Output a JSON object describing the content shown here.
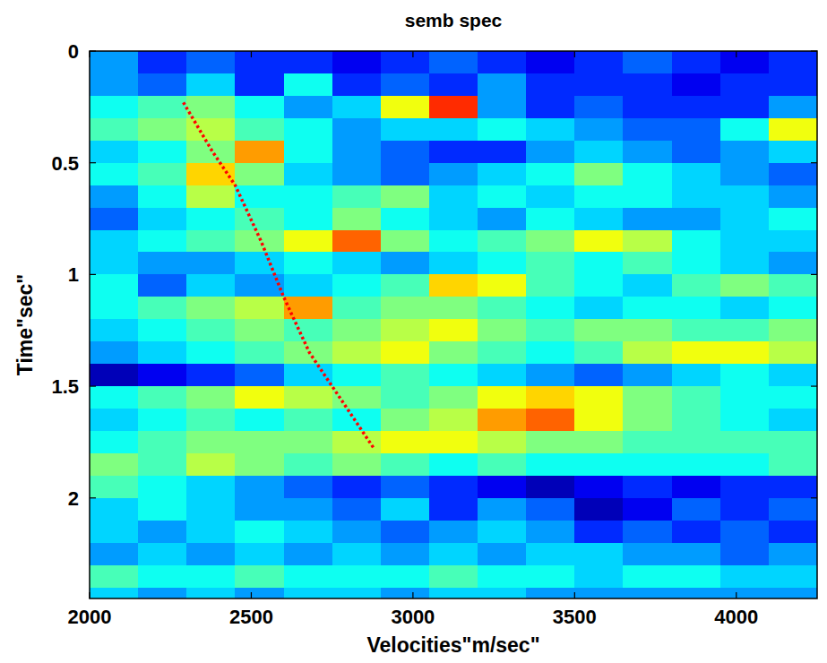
{
  "chart_data": {
    "type": "heatmap",
    "title": "semb spec",
    "x_label": "Velocities\"m/sec\"",
    "y_label": "Time\"sec\"",
    "xlim": [
      2000,
      4250
    ],
    "ylim": [
      0,
      2.45
    ],
    "xticks": [
      2000,
      2500,
      3000,
      3500,
      4000
    ],
    "yticks": [
      0,
      0.5,
      1,
      1.5,
      2
    ],
    "x_edges": [
      2000,
      2150,
      2300,
      2450,
      2600,
      2750,
      2900,
      3050,
      3200,
      3350,
      3500,
      3650,
      3800,
      3950,
      4100,
      4250
    ],
    "y_edges": [
      0,
      0.1,
      0.2,
      0.3,
      0.4,
      0.5,
      0.6,
      0.7,
      0.8,
      0.9,
      1,
      1.1,
      1.2,
      1.3,
      1.4,
      1.5,
      1.6,
      1.7,
      1.8,
      1.9,
      2,
      2.1,
      2.2,
      2.3,
      2.4,
      2.5
    ],
    "color_range": [
      0.15,
      1.05
    ],
    "cells": [
      [
        0.4,
        0.3,
        0.35,
        0.3,
        0.3,
        0.25,
        0.3,
        0.35,
        0.3,
        0.25,
        0.3,
        0.35,
        0.3,
        0.25,
        0.3
      ],
      [
        0.4,
        0.35,
        0.45,
        0.3,
        0.5,
        0.3,
        0.35,
        0.3,
        0.4,
        0.3,
        0.3,
        0.3,
        0.25,
        0.3,
        0.3
      ],
      [
        0.5,
        0.55,
        0.6,
        0.5,
        0.4,
        0.45,
        0.7,
        0.9,
        0.4,
        0.3,
        0.35,
        0.3,
        0.3,
        0.3,
        0.4
      ],
      [
        0.55,
        0.6,
        0.65,
        0.55,
        0.5,
        0.4,
        0.45,
        0.45,
        0.5,
        0.45,
        0.4,
        0.35,
        0.35,
        0.5,
        0.7
      ],
      [
        0.45,
        0.5,
        0.6,
        0.8,
        0.5,
        0.4,
        0.35,
        0.3,
        0.3,
        0.4,
        0.45,
        0.4,
        0.35,
        0.4,
        0.45
      ],
      [
        0.5,
        0.55,
        0.75,
        0.6,
        0.45,
        0.4,
        0.35,
        0.4,
        0.45,
        0.5,
        0.6,
        0.5,
        0.45,
        0.4,
        0.35
      ],
      [
        0.4,
        0.5,
        0.65,
        0.5,
        0.5,
        0.55,
        0.6,
        0.45,
        0.5,
        0.45,
        0.5,
        0.5,
        0.45,
        0.45,
        0.4
      ],
      [
        0.35,
        0.45,
        0.5,
        0.55,
        0.5,
        0.6,
        0.5,
        0.45,
        0.4,
        0.5,
        0.45,
        0.4,
        0.4,
        0.45,
        0.5
      ],
      [
        0.45,
        0.5,
        0.55,
        0.6,
        0.7,
        0.85,
        0.6,
        0.5,
        0.55,
        0.6,
        0.7,
        0.65,
        0.5,
        0.45,
        0.45
      ],
      [
        0.45,
        0.4,
        0.4,
        0.45,
        0.5,
        0.45,
        0.4,
        0.45,
        0.5,
        0.55,
        0.5,
        0.55,
        0.5,
        0.45,
        0.4
      ],
      [
        0.5,
        0.35,
        0.45,
        0.4,
        0.45,
        0.5,
        0.55,
        0.75,
        0.7,
        0.55,
        0.5,
        0.45,
        0.55,
        0.6,
        0.55
      ],
      [
        0.5,
        0.55,
        0.6,
        0.65,
        0.8,
        0.55,
        0.6,
        0.6,
        0.55,
        0.5,
        0.45,
        0.5,
        0.5,
        0.45,
        0.5
      ],
      [
        0.45,
        0.5,
        0.55,
        0.6,
        0.55,
        0.6,
        0.65,
        0.7,
        0.6,
        0.55,
        0.6,
        0.6,
        0.55,
        0.55,
        0.6
      ],
      [
        0.4,
        0.45,
        0.5,
        0.55,
        0.6,
        0.65,
        0.7,
        0.6,
        0.55,
        0.5,
        0.55,
        0.65,
        0.7,
        0.7,
        0.65
      ],
      [
        0.2,
        0.25,
        0.3,
        0.35,
        0.45,
        0.5,
        0.55,
        0.5,
        0.45,
        0.4,
        0.35,
        0.4,
        0.45,
        0.5,
        0.45
      ],
      [
        0.5,
        0.55,
        0.6,
        0.7,
        0.65,
        0.6,
        0.55,
        0.6,
        0.7,
        0.75,
        0.7,
        0.6,
        0.55,
        0.5,
        0.5
      ],
      [
        0.45,
        0.5,
        0.55,
        0.5,
        0.55,
        0.5,
        0.6,
        0.65,
        0.8,
        0.85,
        0.7,
        0.6,
        0.55,
        0.5,
        0.45
      ],
      [
        0.5,
        0.55,
        0.6,
        0.6,
        0.6,
        0.65,
        0.7,
        0.7,
        0.65,
        0.6,
        0.6,
        0.55,
        0.55,
        0.55,
        0.55
      ],
      [
        0.6,
        0.55,
        0.65,
        0.6,
        0.55,
        0.6,
        0.55,
        0.5,
        0.55,
        0.5,
        0.5,
        0.5,
        0.5,
        0.5,
        0.55
      ],
      [
        0.55,
        0.5,
        0.45,
        0.4,
        0.35,
        0.3,
        0.35,
        0.3,
        0.25,
        0.2,
        0.25,
        0.3,
        0.25,
        0.3,
        0.3
      ],
      [
        0.45,
        0.5,
        0.45,
        0.4,
        0.4,
        0.35,
        0.45,
        0.3,
        0.4,
        0.35,
        0.2,
        0.25,
        0.35,
        0.3,
        0.35
      ],
      [
        0.45,
        0.4,
        0.45,
        0.5,
        0.45,
        0.4,
        0.35,
        0.4,
        0.45,
        0.4,
        0.3,
        0.35,
        0.3,
        0.35,
        0.3
      ],
      [
        0.4,
        0.45,
        0.4,
        0.45,
        0.4,
        0.45,
        0.4,
        0.45,
        0.4,
        0.45,
        0.45,
        0.4,
        0.4,
        0.35,
        0.4
      ],
      [
        0.55,
        0.5,
        0.5,
        0.55,
        0.5,
        0.5,
        0.5,
        0.55,
        0.5,
        0.5,
        0.45,
        0.5,
        0.5,
        0.45,
        0.45
      ],
      [
        0.45,
        0.4,
        0.45,
        0.4,
        0.45,
        0.45,
        0.4,
        0.45,
        0.45,
        0.4,
        0.4,
        0.4,
        0.4,
        0.4,
        0.4
      ]
    ],
    "series": [
      {
        "type": "line",
        "color": "#ff0000",
        "line_style": "dotted",
        "x": [
          2290,
          2380,
          2450,
          2530,
          2600,
          2680,
          2750,
          2880
        ],
        "values": [
          0.23,
          0.45,
          0.6,
          0.85,
          1.1,
          1.35,
          1.5,
          1.78
        ]
      }
    ]
  }
}
